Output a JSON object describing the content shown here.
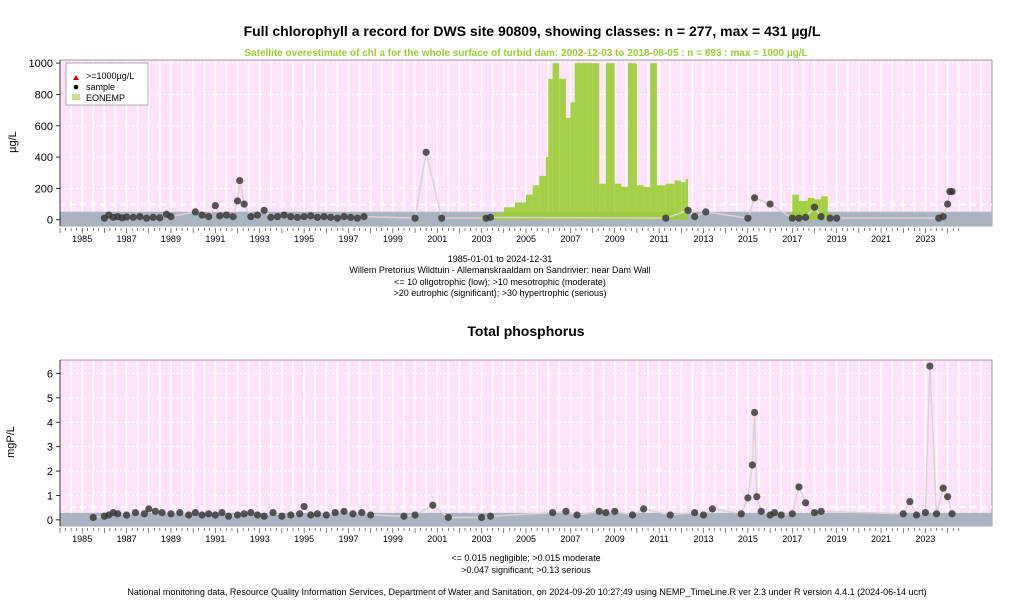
{
  "chart_data": [
    {
      "type": "scatter",
      "title": "Full chlorophyll a record for DWS site 90809, showing classes: n = 277, max = 431 µg/L",
      "subtitle": "Satellite overestimate of chl a for the whole surface of turbid dam: 2002-12-03 to 2018-08-05 : n = 893 : max = 1000 µg/L",
      "xlabel": "",
      "ylabel": "µg/L",
      "xlim": [
        1984.0,
        2026.0
      ],
      "ylim": [
        -40,
        1020
      ],
      "yticks": [
        0,
        200,
        400,
        600,
        800,
        1000
      ],
      "xticks": [
        "1985",
        "1987",
        "1989",
        "1991",
        "1993",
        "1995",
        "1997",
        "1999",
        "2001",
        "2003",
        "2005",
        "2007",
        "2009",
        "2011",
        "2013",
        "2015",
        "2017",
        "2019",
        "2021",
        "2023"
      ],
      "grid": true,
      "legend_position": "top-left",
      "legend": [
        {
          "label": ">=1000µg/L",
          "symbol": "triangle",
          "color": "#dd0000"
        },
        {
          "label": "sample",
          "symbol": "dot",
          "color": "#000000"
        },
        {
          "label": "EONEMP",
          "symbol": "square",
          "color": "#cde08a"
        }
      ],
      "class_lines": [
        10,
        20,
        30
      ],
      "notes": [
        "1985-01-01 to 2024-12-31",
        "Willem Pretorius Wildtuin - Allemanskraaldam on Sandrivier: near Dam Wall",
        "<= 10 oligotrophic (low); >10 mesotrophic (moderate)",
        ">20 eutrophic (significant); >30 hypertrophic (serious)"
      ],
      "series": [
        {
          "name": "sample",
          "x": [
            1986.0,
            1986.2,
            1986.4,
            1986.6,
            1986.8,
            1987.0,
            1987.3,
            1987.6,
            1987.9,
            1988.2,
            1988.5,
            1988.8,
            1989.0,
            1990.1,
            1990.4,
            1990.7,
            1991.0,
            1991.2,
            1991.5,
            1991.8,
            1992.0,
            1992.1,
            1992.3,
            1992.6,
            1992.9,
            1993.2,
            1993.5,
            1993.8,
            1994.1,
            1994.4,
            1994.7,
            1995.0,
            1995.3,
            1995.6,
            1995.9,
            1996.2,
            1996.5,
            1996.8,
            1997.1,
            1997.4,
            1997.7,
            2000.0,
            2000.5,
            2001.2,
            2003.2,
            2003.4,
            2011.3,
            2012.3,
            2012.6,
            2013.1,
            2015.0,
            2015.3,
            2016.0,
            2017.0,
            2017.3,
            2017.6,
            2018.0,
            2018.3,
            2018.7,
            2019.0,
            2023.6,
            2023.8,
            2024.0,
            2024.1,
            2024.2
          ],
          "y": [
            10,
            30,
            15,
            20,
            12,
            18,
            15,
            20,
            10,
            15,
            12,
            35,
            20,
            50,
            30,
            20,
            90,
            25,
            30,
            20,
            120,
            250,
            100,
            20,
            30,
            60,
            15,
            20,
            30,
            20,
            15,
            20,
            25,
            15,
            20,
            15,
            10,
            20,
            15,
            10,
            20,
            10,
            431,
            10,
            10,
            15,
            10,
            60,
            20,
            50,
            10,
            140,
            100,
            10,
            10,
            15,
            80,
            20,
            10,
            10,
            10,
            20,
            100,
            180,
            180
          ]
        },
        {
          "name": "EONEMP",
          "type": "area",
          "x": [
            2002.9,
            2003.5,
            2004.0,
            2004.5,
            2005.0,
            2005.3,
            2005.6,
            2005.9,
            2006.0,
            2006.2,
            2006.5,
            2006.8,
            2007.0,
            2007.2,
            2007.5,
            2007.8,
            2008.0,
            2008.3,
            2008.6,
            2009.0,
            2009.3,
            2009.6,
            2010.0,
            2010.3,
            2010.6,
            2010.9,
            2011.3,
            2011.7,
            2012.0,
            2012.2,
            2012.3,
            2016.8,
            2017.0,
            2017.3,
            2017.7,
            2018.0,
            2018.3,
            2018.6
          ],
          "y": [
            20,
            40,
            80,
            110,
            160,
            220,
            280,
            400,
            900,
            1000,
            900,
            650,
            750,
            1000,
            1000,
            1000,
            1000,
            230,
            1000,
            230,
            210,
            1000,
            220,
            210,
            1000,
            220,
            230,
            250,
            240,
            260,
            30,
            40,
            160,
            120,
            140,
            130,
            150,
            40
          ]
        }
      ]
    },
    {
      "type": "scatter",
      "title": "Total phosphorus",
      "xlabel": "",
      "ylabel": "mgP/L",
      "xlim": [
        1984.0,
        2026.0
      ],
      "ylim": [
        -0.25,
        6.55
      ],
      "yticks": [
        0,
        1,
        2,
        3,
        4,
        5,
        6
      ],
      "xticks": [
        "1985",
        "1987",
        "1989",
        "1991",
        "1993",
        "1995",
        "1997",
        "1999",
        "2001",
        "2003",
        "2005",
        "2007",
        "2009",
        "2011",
        "2013",
        "2015",
        "2017",
        "2019",
        "2021",
        "2023"
      ],
      "grid": true,
      "class_lines": [
        0.015,
        0.047,
        0.13
      ],
      "notes": [
        "<= 0.015 negligible; >0.015 moderate",
        ">0.047 significant; >0.13 serious"
      ],
      "series": [
        {
          "name": "sample",
          "x": [
            1985.5,
            1986.0,
            1986.2,
            1986.4,
            1986.6,
            1987.0,
            1987.4,
            1987.8,
            1988.0,
            1988.3,
            1988.6,
            1989.0,
            1989.4,
            1989.8,
            1990.1,
            1990.4,
            1990.7,
            1991.0,
            1991.3,
            1991.6,
            1992.0,
            1992.3,
            1992.6,
            1992.9,
            1993.2,
            1993.6,
            1994.0,
            1994.4,
            1994.8,
            1995.0,
            1995.3,
            1995.6,
            1996.0,
            1996.4,
            1996.8,
            1997.2,
            1997.6,
            1998.0,
            1999.5,
            2000.0,
            2000.8,
            2001.5,
            2003.0,
            2003.4,
            2006.2,
            2006.8,
            2007.3,
            2008.3,
            2008.6,
            2009.0,
            2009.8,
            2010.3,
            2011.5,
            2012.6,
            2013.0,
            2013.4,
            2014.7,
            2015.0,
            2015.2,
            2015.3,
            2015.4,
            2015.6,
            2016.0,
            2016.2,
            2016.5,
            2017.0,
            2017.3,
            2017.6,
            2018.0,
            2018.3,
            2022.0,
            2022.3,
            2022.6,
            2023.0,
            2023.2,
            2023.5,
            2023.8,
            2024.0,
            2024.2
          ],
          "y": [
            0.1,
            0.15,
            0.2,
            0.3,
            0.25,
            0.2,
            0.3,
            0.25,
            0.45,
            0.35,
            0.3,
            0.25,
            0.3,
            0.2,
            0.3,
            0.2,
            0.25,
            0.2,
            0.3,
            0.15,
            0.2,
            0.25,
            0.3,
            0.2,
            0.15,
            0.3,
            0.15,
            0.2,
            0.25,
            0.55,
            0.2,
            0.25,
            0.2,
            0.3,
            0.35,
            0.25,
            0.3,
            0.2,
            0.15,
            0.2,
            0.6,
            0.1,
            0.1,
            0.15,
            0.3,
            0.35,
            0.2,
            0.35,
            0.3,
            0.35,
            0.2,
            0.45,
            0.2,
            0.3,
            0.2,
            0.45,
            0.25,
            0.9,
            2.25,
            4.4,
            0.95,
            0.35,
            0.2,
            0.3,
            0.2,
            0.25,
            1.35,
            0.7,
            0.3,
            0.35,
            0.25,
            0.75,
            0.2,
            0.3,
            6.3,
            0.25,
            1.3,
            0.95,
            0.25
          ]
        }
      ]
    }
  ],
  "footer": "National monitoring data, Resource Quality Information Services, Department of Water and Sanitation, on 2024-09-20 10:27:49 using NEMP_TimeLine.R ver 2.3 under R version 4.4.1 (2024-06-14 ucrt)",
  "colors": {
    "plot_background": "#fde2fa",
    "vertical_grid": "#ffffff",
    "class_band": "#a9b4c0",
    "eonemp": "#9acd32",
    "points": "#333333",
    "subtitle": "#9acd32"
  }
}
